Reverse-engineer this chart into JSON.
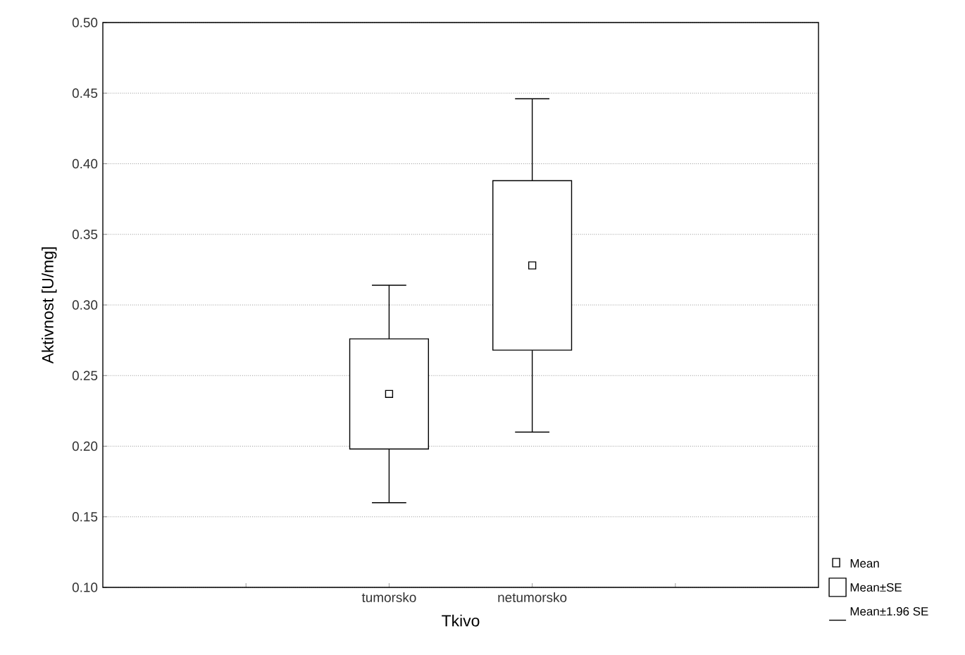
{
  "chart_data": {
    "type": "box",
    "xlabel": "Tkivo",
    "ylabel": "Aktivnost [U/mg]",
    "categories": [
      "tumorsko",
      "netumorsko"
    ],
    "boxes": [
      {
        "low": 0.16,
        "q1": 0.198,
        "median": 0.237,
        "q3": 0.276,
        "high": 0.314
      },
      {
        "low": 0.21,
        "q1": 0.268,
        "median": 0.328,
        "q3": 0.388,
        "high": 0.446
      }
    ],
    "ylim": [
      0.1,
      0.5
    ],
    "yticks": [
      {
        "value": 0.1,
        "label": "0.10"
      },
      {
        "value": 0.15,
        "label": "0.15"
      },
      {
        "value": 0.2,
        "label": "0.20"
      },
      {
        "value": 0.25,
        "label": "0.25"
      },
      {
        "value": 0.3,
        "label": "0.30"
      },
      {
        "value": 0.35,
        "label": "0.35"
      },
      {
        "value": 0.4,
        "label": "0.40"
      },
      {
        "value": 0.45,
        "label": "0.45"
      },
      {
        "value": 0.5,
        "label": "0.50"
      }
    ],
    "grid": "y",
    "annotations": [
      "Mean",
      "Mean±SE",
      "Mean±1.96 SE"
    ]
  }
}
